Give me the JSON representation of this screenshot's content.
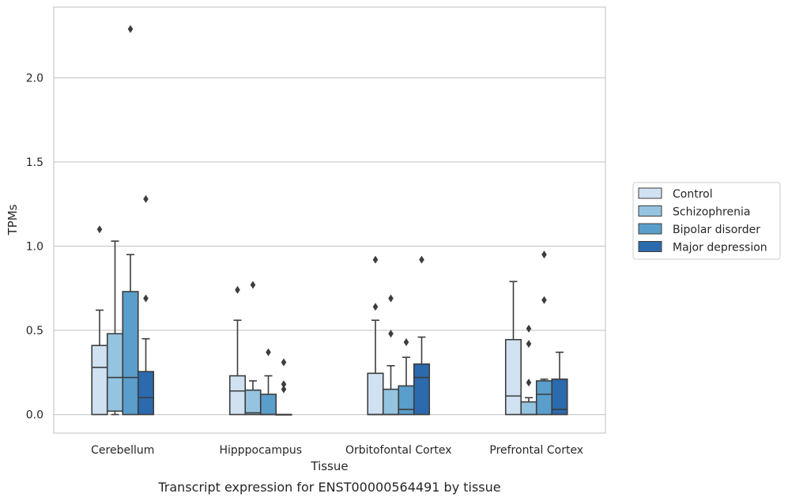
{
  "chart_data": {
    "type": "box",
    "xlabel": "Tissue",
    "ylabel": "TPMs",
    "caption": "Transcript expression for ENST00000564491 by tissue",
    "ylim": [
      -0.11,
      2.42
    ],
    "yticks": [
      0.0,
      0.5,
      1.0,
      1.5,
      2.0
    ],
    "ytick_labels": [
      "0.0",
      "0.5",
      "1.0",
      "1.5",
      "2.0"
    ],
    "grid": "horizontal",
    "legend_position": "right",
    "categories": [
      "Cerebellum",
      "Hipppocampus",
      "Orbitofontal Cortex",
      "Prefrontal Cortex"
    ],
    "series": [
      {
        "name": "Control",
        "color": "#d0e1f2",
        "boxes": [
          {
            "q1": 0.0,
            "median": 0.28,
            "q3": 0.41,
            "whisker_low": 0.0,
            "whisker_high": 0.62,
            "outliers": [
              1.1
            ]
          },
          {
            "q1": 0.0,
            "median": 0.14,
            "q3": 0.23,
            "whisker_low": 0.0,
            "whisker_high": 0.56,
            "outliers": [
              0.74
            ]
          },
          {
            "q1": 0.0,
            "median": 0.0,
            "q3": 0.245,
            "whisker_low": 0.0,
            "whisker_high": 0.56,
            "outliers": [
              0.64,
              0.92
            ]
          },
          {
            "q1": 0.0,
            "median": 0.11,
            "q3": 0.445,
            "whisker_low": 0.0,
            "whisker_high": 0.79,
            "outliers": []
          }
        ]
      },
      {
        "name": "Schizophrenia",
        "color": "#94c4df",
        "boxes": [
          {
            "q1": 0.02,
            "median": 0.22,
            "q3": 0.48,
            "whisker_low": 0.0,
            "whisker_high": 1.03,
            "outliers": []
          },
          {
            "q1": 0.0,
            "median": 0.01,
            "q3": 0.145,
            "whisker_low": 0.0,
            "whisker_high": 0.2,
            "outliers": [
              0.77
            ]
          },
          {
            "q1": 0.0,
            "median": 0.0,
            "q3": 0.15,
            "whisker_low": 0.0,
            "whisker_high": 0.29,
            "outliers": [
              0.48,
              0.69
            ]
          },
          {
            "q1": 0.0,
            "median": 0.0,
            "q3": 0.075,
            "whisker_low": 0.0,
            "whisker_high": 0.1,
            "outliers": [
              0.19,
              0.42,
              0.51
            ]
          }
        ]
      },
      {
        "name": "Bipolar disorder",
        "color": "#5a9ecb",
        "boxes": [
          {
            "q1": 0.0,
            "median": 0.22,
            "q3": 0.73,
            "whisker_low": 0.0,
            "whisker_high": 0.95,
            "outliers": [
              2.29
            ]
          },
          {
            "q1": 0.0,
            "median": 0.0,
            "q3": 0.12,
            "whisker_low": 0.0,
            "whisker_high": 0.23,
            "outliers": [
              0.37
            ]
          },
          {
            "q1": 0.0,
            "median": 0.03,
            "q3": 0.17,
            "whisker_low": 0.0,
            "whisker_high": 0.34,
            "outliers": [
              0.43
            ]
          },
          {
            "q1": 0.0,
            "median": 0.12,
            "q3": 0.2,
            "whisker_low": 0.0,
            "whisker_high": 0.21,
            "outliers": [
              0.68,
              0.95
            ]
          }
        ]
      },
      {
        "name": "Major depression",
        "color": "#2b6aad",
        "boxes": [
          {
            "q1": 0.0,
            "median": 0.1,
            "q3": 0.255,
            "whisker_low": 0.0,
            "whisker_high": 0.45,
            "outliers": [
              0.69,
              1.28
            ]
          },
          {
            "q1": 0.0,
            "median": 0.0,
            "q3": 0.0,
            "whisker_low": 0.0,
            "whisker_high": 0.0,
            "outliers": [
              0.15,
              0.18,
              0.31
            ]
          },
          {
            "q1": 0.0,
            "median": 0.22,
            "q3": 0.3,
            "whisker_low": 0.0,
            "whisker_high": 0.46,
            "outliers": [
              0.92
            ]
          },
          {
            "q1": 0.0,
            "median": 0.03,
            "q3": 0.21,
            "whisker_low": 0.0,
            "whisker_high": 0.37,
            "outliers": []
          }
        ]
      }
    ]
  }
}
